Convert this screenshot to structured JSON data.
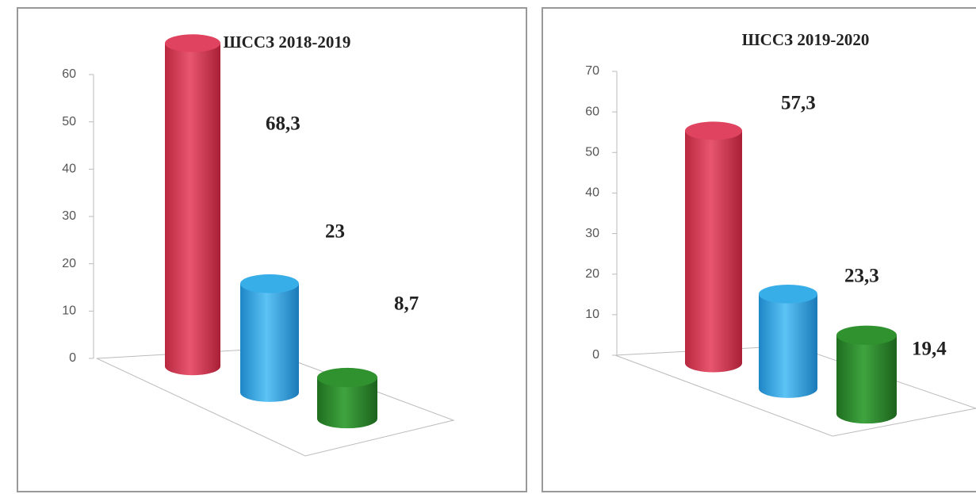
{
  "chart_data": [
    {
      "type": "bar",
      "title": "ШССЗ  2018-2019",
      "categories": [
        null,
        null,
        null
      ],
      "values": [
        68.3,
        23,
        8.7
      ],
      "value_labels": [
        "68,3",
        "23",
        "8,7"
      ],
      "colors": [
        "#e0435f",
        "#38aee8",
        "#2f922f"
      ],
      "ylim": [
        0,
        60
      ],
      "yticks": [
        0,
        10,
        20,
        30,
        40,
        50,
        60
      ]
    },
    {
      "type": "bar",
      "title": "ШССЗ  2019-2020",
      "categories": [
        null,
        null,
        null
      ],
      "values": [
        57.3,
        23.3,
        19.4
      ],
      "value_labels": [
        "57,3",
        "23,3",
        "19,4"
      ],
      "colors": [
        "#e0435f",
        "#38aee8",
        "#2f922f"
      ],
      "ylim": [
        0,
        70
      ],
      "yticks": [
        0,
        10,
        20,
        30,
        40,
        50,
        60,
        70
      ]
    }
  ]
}
